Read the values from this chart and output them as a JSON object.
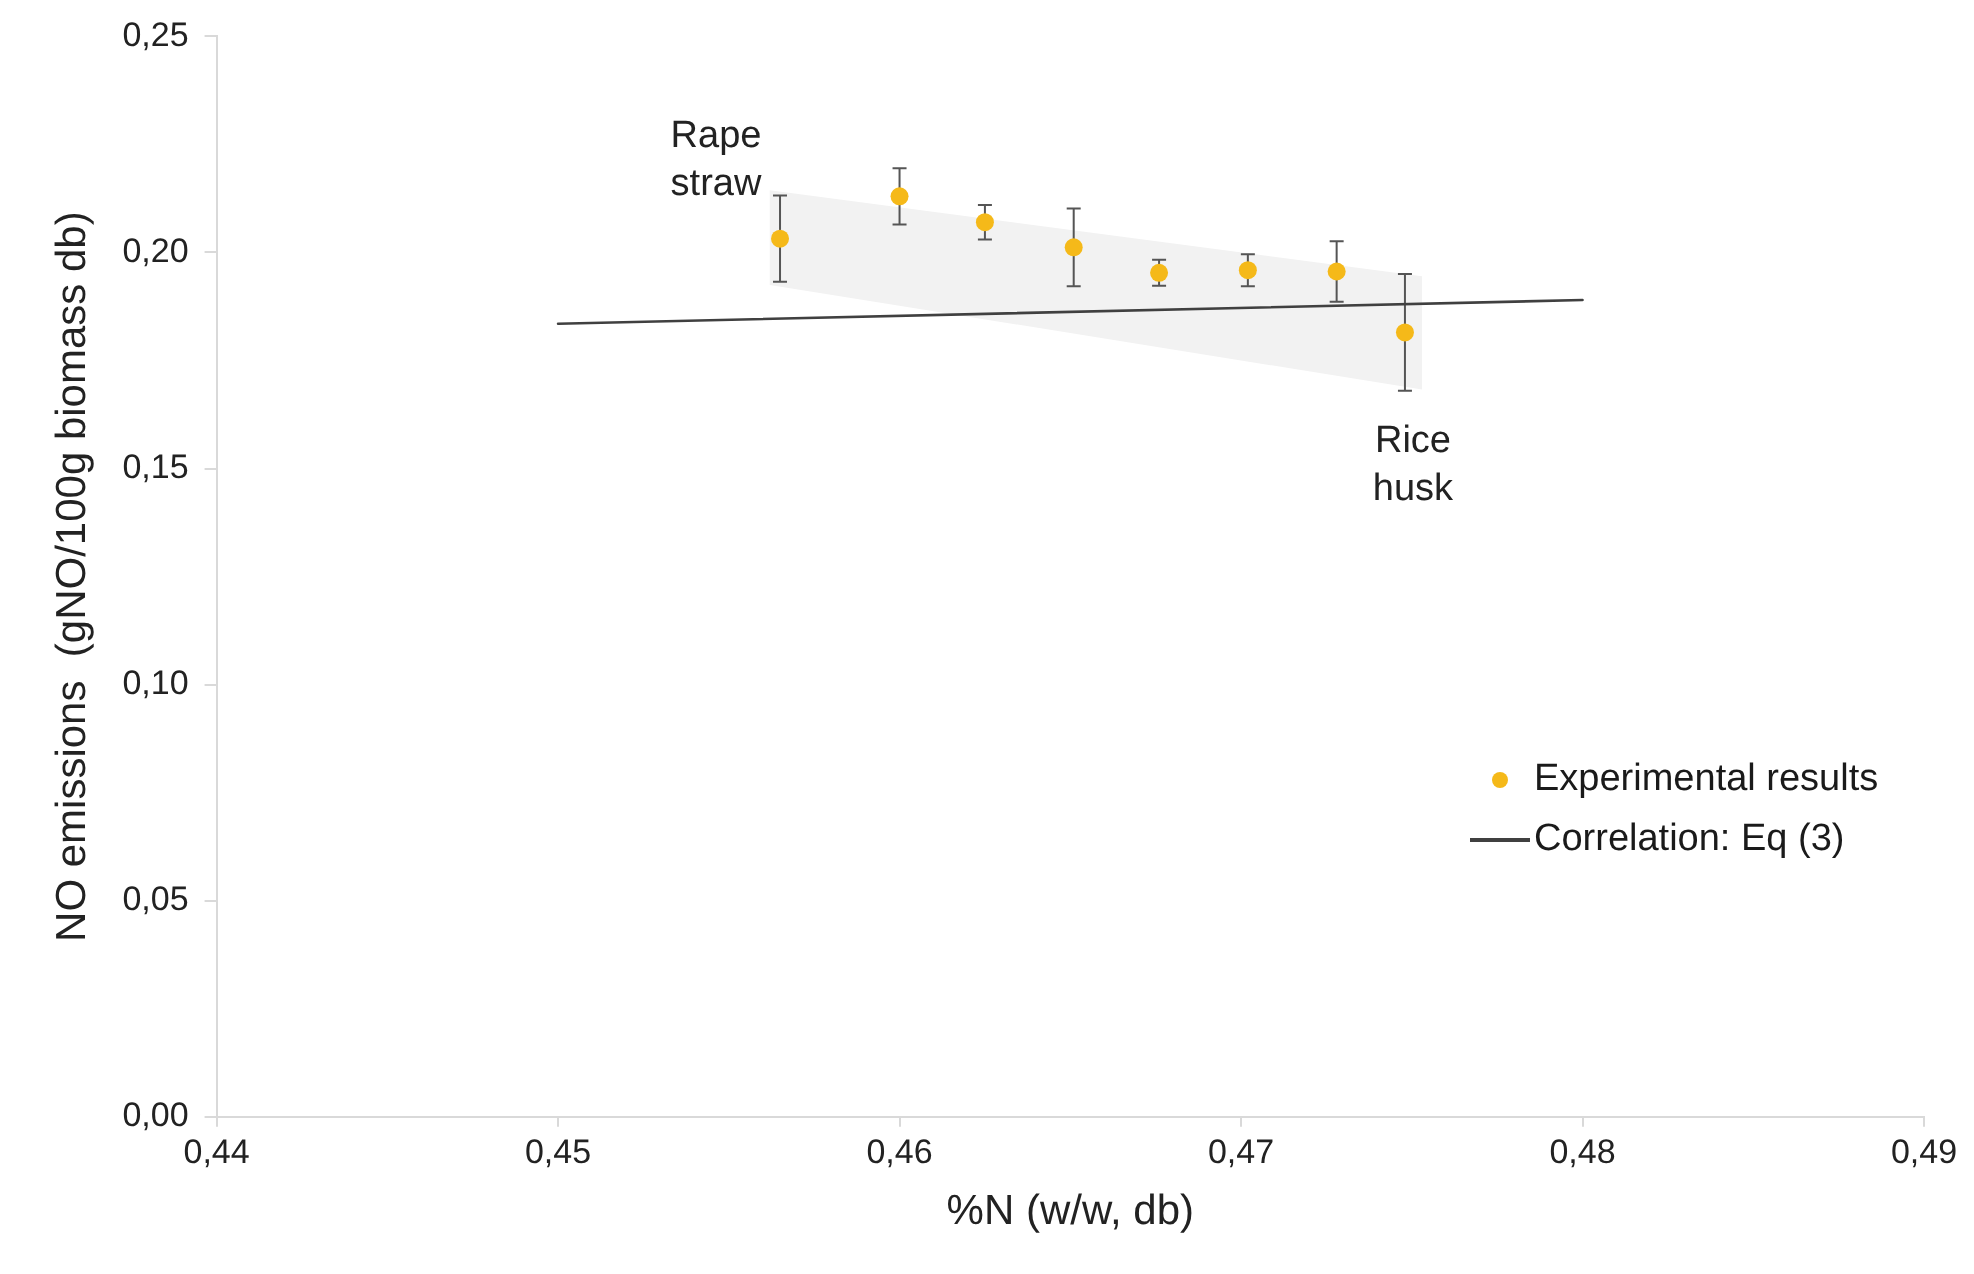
{
  "chart_data": {
    "type": "scatter",
    "xlabel": "%N (w/w, db)",
    "ylabel": "NO emissions  (gNO/100g biomass db)",
    "xlim": [
      0.44,
      0.49
    ],
    "xticks": [
      {
        "value": 0.44,
        "label": "0,44"
      },
      {
        "value": 0.45,
        "label": "0,45"
      },
      {
        "value": 0.46,
        "label": "0,46"
      },
      {
        "value": 0.47,
        "label": "0,47"
      },
      {
        "value": 0.48,
        "label": "0,48"
      },
      {
        "value": 0.49,
        "label": "0,49"
      }
    ],
    "ylim": [
      0,
      0.25
    ],
    "yticks": [
      {
        "value": 0,
        "label": "0,00"
      },
      {
        "value": 0.05,
        "label": "0,05"
      },
      {
        "value": 0.1,
        "label": "0,10"
      },
      {
        "value": 0.15,
        "label": "0,15"
      },
      {
        "value": 0.2,
        "label": "0,20"
      },
      {
        "value": 0.25,
        "label": "0,25"
      }
    ],
    "grid": false,
    "legend": "right",
    "marker": "circle",
    "series": [
      {
        "type": "line",
        "color": "#f2f2f2",
        "x": [
          0.4562,
          0.4753
        ],
        "values": [
          null,
          null
        ],
        "lower": [
          0.1925,
          0.1683
        ],
        "upper": [
          0.2144,
          0.1945
        ]
      },
      {
        "name": "Experimental results",
        "color": "#f5b919",
        "x": [
          0.4565,
          0.46,
          0.4625,
          0.4651,
          0.4676,
          0.4702,
          0.4728,
          0.4748
        ],
        "values": [
          0.2032,
          0.213,
          0.207,
          0.2012,
          0.1953,
          0.1959,
          0.1956,
          0.1815
        ],
        "errors": [
          0.01,
          0.0065,
          0.004,
          0.009,
          0.003,
          0.0037,
          0.007,
          0.0135
        ]
      },
      {
        "type": "line",
        "name": "Correlation: Eq (3)",
        "color": "#404040",
        "marker": "none",
        "x": [
          0.45,
          0.48
        ],
        "values": [
          0.1835,
          0.189
        ]
      }
    ],
    "annotations": [
      {
        "text": "Rape straw",
        "x": 0.4565,
        "y": 0.2032
      },
      {
        "text": "Rice husk",
        "x": 0.4748,
        "y": 0.1815
      }
    ]
  }
}
